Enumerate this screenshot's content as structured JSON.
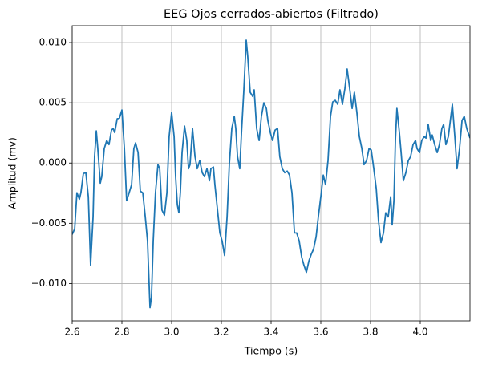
{
  "chart_data": {
    "type": "line",
    "title": "EEG Ojos cerrados-abiertos (Filtrado)",
    "xlabel": "Tiempo (s)",
    "ylabel": "Amplitud (mv)",
    "grid": true,
    "xlim": [
      2.6,
      4.2
    ],
    "ylim": [
      -0.0131,
      0.0114
    ],
    "xticks": [
      2.6,
      2.8,
      {
        "value": 3,
        "label": "3.0"
      },
      3.2,
      3.4,
      3.6,
      3.8,
      {
        "value": 4,
        "label": "4.0"
      }
    ],
    "yticks": [
      {
        "value": -0.01,
        "label": "−0.010"
      },
      {
        "value": -0.005,
        "label": "−0.005"
      },
      {
        "value": 0,
        "label": "0.000"
      },
      {
        "value": 0.005,
        "label": "0.005"
      },
      {
        "value": 0.01,
        "label": "0.010"
      }
    ],
    "x": [
      2.6,
      2.61,
      2.619,
      2.629,
      2.635,
      2.645,
      2.655,
      2.665,
      2.674,
      2.684,
      2.69,
      2.697,
      2.703,
      2.713,
      2.719,
      2.729,
      2.739,
      2.748,
      2.758,
      2.765,
      2.771,
      2.781,
      2.79,
      2.8,
      2.81,
      2.819,
      2.829,
      2.839,
      2.848,
      2.855,
      2.865,
      2.874,
      2.884,
      2.894,
      2.903,
      2.913,
      2.919,
      2.926,
      2.935,
      2.945,
      2.952,
      2.961,
      2.971,
      2.981,
      2.99,
      3.0,
      3.01,
      3.016,
      3.023,
      3.029,
      3.035,
      3.042,
      3.052,
      3.061,
      3.068,
      3.074,
      3.084,
      3.094,
      3.103,
      3.113,
      3.123,
      3.132,
      3.142,
      3.152,
      3.158,
      3.168,
      3.174,
      3.184,
      3.194,
      3.203,
      3.213,
      3.223,
      3.232,
      3.242,
      3.252,
      3.258,
      3.265,
      3.274,
      3.281,
      3.29,
      3.3,
      3.306,
      3.316,
      3.326,
      3.332,
      3.342,
      3.352,
      3.361,
      3.371,
      3.381,
      3.387,
      3.397,
      3.406,
      3.416,
      3.426,
      3.435,
      3.445,
      3.455,
      3.465,
      3.474,
      3.484,
      3.494,
      3.503,
      3.513,
      3.523,
      3.532,
      3.542,
      3.552,
      3.561,
      3.571,
      3.581,
      3.59,
      3.6,
      3.61,
      3.619,
      3.629,
      3.639,
      3.648,
      3.658,
      3.668,
      3.677,
      3.687,
      3.697,
      3.706,
      3.716,
      3.726,
      3.735,
      3.745,
      3.755,
      3.765,
      3.774,
      3.784,
      3.794,
      3.803,
      3.813,
      3.823,
      3.832,
      3.842,
      3.852,
      3.861,
      3.871,
      3.881,
      3.887,
      3.894,
      3.9,
      3.906,
      3.916,
      3.923,
      3.932,
      3.942,
      3.952,
      3.961,
      3.971,
      3.981,
      3.987,
      3.997,
      4.006,
      4.016,
      4.023,
      4.032,
      4.042,
      4.048,
      4.058,
      4.068,
      4.077,
      4.087,
      4.094,
      4.103,
      4.113,
      4.123,
      4.129,
      4.139,
      4.148,
      4.158,
      4.168,
      4.177,
      4.187,
      4.2
    ],
    "series": [
      {
        "color": "#1f77b4",
        "values": [
          -0.00593,
          -0.00547,
          -0.00247,
          -0.003,
          -0.00247,
          -0.00087,
          -0.0008,
          -0.0028,
          -0.00847,
          -0.00447,
          0.00053,
          0.00267,
          0.0012,
          -0.00167,
          -0.00113,
          0.0012,
          0.00187,
          0.00153,
          0.00273,
          0.00287,
          0.00253,
          0.00367,
          0.00373,
          0.0044,
          0.0012,
          -0.00313,
          -0.00247,
          -0.0018,
          0.0012,
          0.00167,
          0.00087,
          -0.00233,
          -0.00247,
          -0.00447,
          -0.00647,
          -0.012,
          -0.01113,
          -0.00647,
          -0.00247,
          -0.00013,
          -0.00047,
          -0.0039,
          -0.00433,
          -0.00247,
          0.0022,
          0.0042,
          0.0022,
          -0.00113,
          -0.00347,
          -0.00413,
          -0.00247,
          0.00087,
          0.00307,
          0.00187,
          -0.00047,
          -0.00013,
          0.00287,
          0.00053,
          -0.00047,
          0.0002,
          -0.0008,
          -0.00113,
          -0.00047,
          -0.00147,
          -0.00047,
          -0.00033,
          -0.0018,
          -0.0038,
          -0.0058,
          -0.00647,
          -0.00767,
          -0.00447,
          -0.00013,
          0.00287,
          0.00387,
          0.00287,
          0.00053,
          -0.00047,
          0.00253,
          0.00587,
          0.0102,
          0.00887,
          0.00587,
          0.00553,
          0.00607,
          0.00287,
          0.00187,
          0.00387,
          0.005,
          0.00453,
          0.00353,
          0.00253,
          0.00187,
          0.00273,
          0.00287,
          0.00053,
          -0.00047,
          -0.0008,
          -0.00067,
          -0.001,
          -0.00247,
          -0.0058,
          -0.0058,
          -0.00647,
          -0.0078,
          -0.00847,
          -0.00907,
          -0.00813,
          -0.0076,
          -0.00713,
          -0.00613,
          -0.00447,
          -0.0028,
          -0.001,
          -0.0018,
          0.0002,
          0.00387,
          0.00507,
          0.0052,
          0.00487,
          0.00607,
          0.00487,
          0.0062,
          0.0078,
          0.0062,
          0.00453,
          0.00587,
          0.0042,
          0.0022,
          0.0012,
          -0.00013,
          0.0002,
          0.0012,
          0.00107,
          -0.00047,
          -0.00213,
          -0.0048,
          -0.0066,
          -0.0058,
          -0.00413,
          -0.00447,
          -0.0028,
          -0.00513,
          -0.00313,
          0.00187,
          0.00453,
          0.00253,
          0.00087,
          -0.00147,
          -0.0008,
          0.0002,
          0.00053,
          0.00153,
          0.00187,
          0.0012,
          0.00087,
          0.00187,
          0.0022,
          0.00207,
          0.0032,
          0.00187,
          0.00233,
          0.00153,
          0.00087,
          0.00153,
          0.00287,
          0.0032,
          0.00153,
          0.0022,
          0.00387,
          0.00487,
          0.0022,
          -0.00047,
          0.0012,
          0.00353,
          0.00387,
          0.00287,
          0.00207
        ]
      }
    ]
  }
}
